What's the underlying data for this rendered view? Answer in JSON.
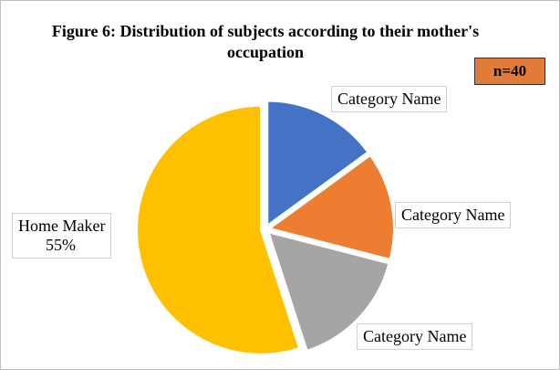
{
  "chart_data": {
    "type": "pie",
    "title": "Figure 6: Distribution of subjects according to their mother's occupation",
    "annotation": "n=40",
    "categories": [
      "Category Name",
      "Category Name",
      "Category Name",
      "Home Maker"
    ],
    "values": [
      15,
      14,
      16,
      55
    ],
    "value_labels": [
      null,
      null,
      null,
      "55%"
    ],
    "colors": [
      "#4472c4",
      "#ed7d31",
      "#a5a5a5",
      "#ffc000"
    ]
  }
}
